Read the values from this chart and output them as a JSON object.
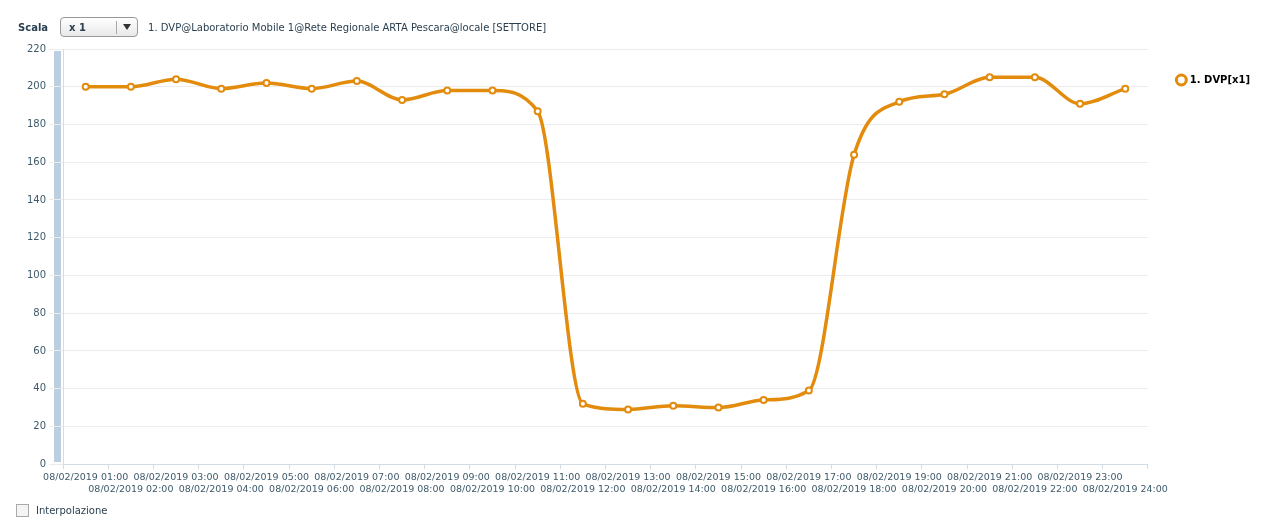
{
  "chart_data": {
    "type": "line",
    "title": "1. DVP@Laboratorio Mobile 1@Rete Regionale ARTA Pescara@locale [SETTORE]",
    "annotations": [
      "Scala",
      "x 1",
      "Interpolazione"
    ],
    "categories": [
      "08/02/2019 01:00",
      "08/02/2019 02:00",
      "08/02/2019 03:00",
      "08/02/2019 04:00",
      "08/02/2019 05:00",
      "08/02/2019 06:00",
      "08/02/2019 07:00",
      "08/02/2019 08:00",
      "08/02/2019 09:00",
      "08/02/2019 10:00",
      "08/02/2019 11:00",
      "08/02/2019 12:00",
      "08/02/2019 13:00",
      "08/02/2019 14:00",
      "08/02/2019 15:00",
      "08/02/2019 16:00",
      "08/02/2019 17:00",
      "08/02/2019 18:00",
      "08/02/2019 19:00",
      "08/02/2019 20:00",
      "08/02/2019 21:00",
      "08/02/2019 22:00",
      "08/02/2019 23:00",
      "08/02/2019 24:00"
    ],
    "series": [
      {
        "name": "1. DVP[x1]",
        "color": "#e38b0c",
        "values": [
          200,
          200,
          204,
          199,
          202,
          199,
          203,
          193,
          198,
          198,
          187,
          32,
          29,
          31,
          30,
          34,
          39,
          164,
          192,
          196,
          205,
          205,
          191,
          199
        ]
      }
    ],
    "ylim": [
      0,
      220
    ],
    "yticks": [
      0,
      20,
      40,
      60,
      80,
      100,
      120,
      140,
      160,
      180,
      200,
      220
    ],
    "grid": "y",
    "legend": "top right",
    "marker": "circle",
    "line_style": "solid"
  }
}
